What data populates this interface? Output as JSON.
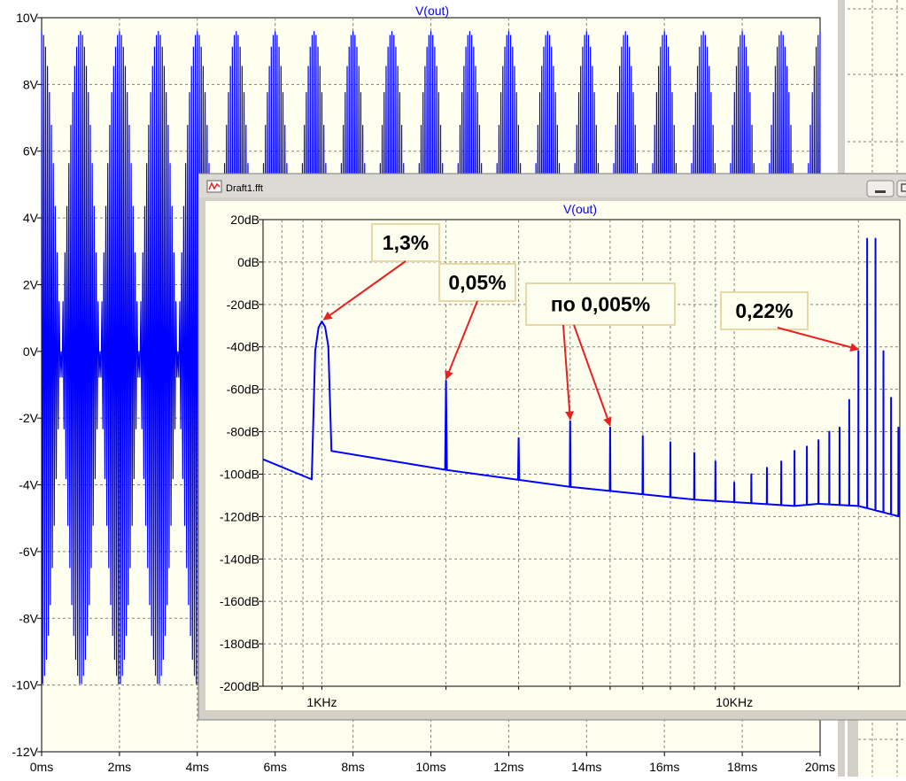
{
  "colors": {
    "plot_bg": "#fffff0",
    "trace": "#0000ff",
    "grid": "#808080",
    "window_frame": "#d4d0c8",
    "annotation_box": "#fffff0",
    "annotation_border": "#e8d8a8",
    "arrow": "#e82020"
  },
  "background_window": {
    "title": "V(out)",
    "chart_data": {
      "type": "line",
      "title": "V(out)",
      "xlabel": "",
      "ylabel": "",
      "x_unit": "ms",
      "y_unit": "V",
      "xlim": [
        0,
        20
      ],
      "ylim": [
        -12,
        10
      ],
      "x_ticks": [
        "0ms",
        "2ms",
        "4ms",
        "6ms",
        "8ms",
        "10ms",
        "12ms",
        "14ms",
        "16ms",
        "18ms",
        "20ms"
      ],
      "y_ticks": [
        "10V",
        "8V",
        "6V",
        "4V",
        "2V",
        "0V",
        "-2V",
        "-4V",
        "-6V",
        "-8V",
        "-10V",
        "-12V"
      ],
      "grid": true,
      "series": [
        {
          "description_values": "dense waveform, envelope beats with period 1ms",
          "carrier_period_ms": 0.05,
          "envelope_peaks_ms": [
            0,
            1,
            2,
            3,
            4,
            5,
            6,
            7,
            8,
            9,
            10,
            11,
            12,
            13,
            14,
            15,
            16,
            17,
            18,
            19,
            20
          ],
          "positive_peak_V": 9.6,
          "negative_peak_V": -10.0,
          "envelope_null_V": 0
        }
      ]
    }
  },
  "fft_window": {
    "title": "Draft1.fft",
    "plot_title": "V(out)",
    "buttons": {
      "minimize": "",
      "maximize": ""
    },
    "chart_data": {
      "type": "line",
      "title": "V(out)",
      "xlabel": "",
      "ylabel": "",
      "x_scale": "log",
      "x_unit": "Hz",
      "y_unit": "dB",
      "xlim": [
        720,
        25200
      ],
      "ylim": [
        -200,
        20
      ],
      "x_ticks": [
        "1KHz",
        "10KHz"
      ],
      "y_ticks": [
        "20dB",
        "0dB",
        "-20dB",
        "-40dB",
        "-60dB",
        "-80dB",
        "-100dB",
        "-120dB",
        "-140dB",
        "-160dB",
        "-180dB",
        "-200dB"
      ],
      "grid": true,
      "noise_floor": [
        [
          720,
          -93
        ],
        [
          960,
          -103
        ],
        [
          1050,
          -89
        ],
        [
          2000,
          -98
        ],
        [
          4000,
          -106
        ],
        [
          8000,
          -112
        ],
        [
          14000,
          -115
        ],
        [
          16000,
          -114
        ],
        [
          20000,
          -115
        ],
        [
          25200,
          -120
        ]
      ],
      "peaks": [
        {
          "f": 1000,
          "db": -28
        },
        {
          "f": 2000,
          "db": -56
        },
        {
          "f": 3000,
          "db": -83
        },
        {
          "f": 4000,
          "db": -75
        },
        {
          "f": 5000,
          "db": -78
        },
        {
          "f": 6000,
          "db": -82
        },
        {
          "f": 7000,
          "db": -85
        },
        {
          "f": 8000,
          "db": -90
        },
        {
          "f": 9000,
          "db": -94
        },
        {
          "f": 10000,
          "db": -104
        },
        {
          "f": 11000,
          "db": -100
        },
        {
          "f": 12000,
          "db": -97
        },
        {
          "f": 13000,
          "db": -94
        },
        {
          "f": 14000,
          "db": -89
        },
        {
          "f": 15000,
          "db": -87
        },
        {
          "f": 16000,
          "db": -84
        },
        {
          "f": 17000,
          "db": -80
        },
        {
          "f": 18000,
          "db": -78
        },
        {
          "f": 19000,
          "db": -65
        },
        {
          "f": 20000,
          "db": -42
        },
        {
          "f": 21000,
          "db": 11
        },
        {
          "f": 22000,
          "db": 11
        },
        {
          "f": 23000,
          "db": -42
        },
        {
          "f": 24000,
          "db": -64
        },
        {
          "f": 25000,
          "db": -78
        }
      ],
      "annotations": [
        {
          "text": "1,3%",
          "target_f": 1000,
          "target_db": -28
        },
        {
          "text": "0,05%",
          "target_f": 2000,
          "target_db": -56
        },
        {
          "text": "по 0,005%",
          "target_f": [
            4000,
            5000
          ],
          "target_db": [
            -75,
            -78
          ]
        },
        {
          "text": "0,22%",
          "target_f": 20000,
          "target_db": -42
        }
      ]
    }
  }
}
